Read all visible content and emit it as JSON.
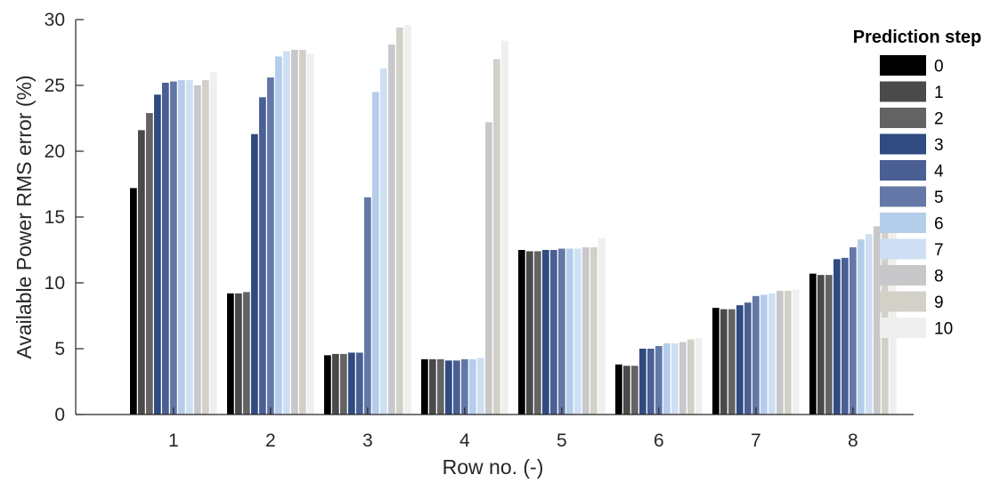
{
  "chart_data": {
    "type": "bar",
    "xlabel": "Row no. (-)",
    "ylabel": "Available Power RMS error (%)",
    "ylim": [
      0,
      30
    ],
    "yticks": [
      0,
      5,
      10,
      15,
      20,
      25,
      30
    ],
    "categories": [
      "1",
      "2",
      "3",
      "4",
      "5",
      "6",
      "7",
      "8"
    ],
    "legend": {
      "title": "Prediction step",
      "position": "right"
    },
    "grid": false,
    "series": [
      {
        "name": "0",
        "color": "#000000",
        "values": [
          17.2,
          9.2,
          4.5,
          4.2,
          12.5,
          3.8,
          8.1,
          10.7
        ]
      },
      {
        "name": "1",
        "color": "#4a4a4a",
        "values": [
          21.6,
          9.2,
          4.6,
          4.2,
          12.4,
          3.7,
          8.0,
          10.6
        ]
      },
      {
        "name": "2",
        "color": "#636363",
        "values": [
          22.9,
          9.3,
          4.6,
          4.2,
          12.4,
          3.7,
          8.0,
          10.6
        ]
      },
      {
        "name": "3",
        "color": "#2f4b80",
        "values": [
          24.3,
          21.3,
          4.7,
          4.1,
          12.5,
          5.0,
          8.3,
          11.8
        ]
      },
      {
        "name": "4",
        "color": "#4a5f94",
        "values": [
          25.2,
          24.1,
          4.7,
          4.1,
          12.5,
          5.0,
          8.5,
          11.9
        ]
      },
      {
        "name": "5",
        "color": "#6378a6",
        "values": [
          25.3,
          25.6,
          16.5,
          4.2,
          12.6,
          5.2,
          9.0,
          12.7
        ]
      },
      {
        "name": "6",
        "color": "#b4cdeb",
        "values": [
          25.4,
          27.2,
          24.5,
          4.2,
          12.6,
          5.4,
          9.1,
          13.3
        ]
      },
      {
        "name": "7",
        "color": "#cfdff3",
        "values": [
          25.4,
          27.6,
          26.3,
          4.3,
          12.6,
          5.4,
          9.2,
          13.7
        ]
      },
      {
        "name": "8",
        "color": "#c8c8ca",
        "values": [
          25.0,
          27.7,
          28.1,
          22.2,
          12.7,
          5.5,
          9.4,
          14.3
        ]
      },
      {
        "name": "9",
        "color": "#d3d0c8",
        "values": [
          25.4,
          27.7,
          29.4,
          27.0,
          12.7,
          5.7,
          9.4,
          14.4
        ]
      },
      {
        "name": "10",
        "color": "#efefef",
        "values": [
          26.0,
          27.4,
          29.6,
          28.4,
          13.4,
          5.8,
          9.5,
          14.5
        ]
      }
    ]
  }
}
